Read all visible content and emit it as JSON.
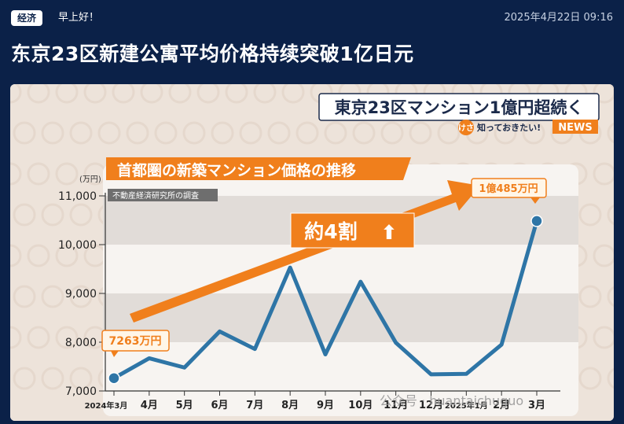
{
  "header": {
    "category": "经济",
    "greeting": "早上好！",
    "timestamp": "2025年4月22日 09:16"
  },
  "article": {
    "headline": "东京23区新建公寓平均价格持续突破1亿日元"
  },
  "broadcast": {
    "title_banner": "東京23区マンション1億円超続く",
    "corner_badge": "けさ",
    "corner_text": "知っておきたい!",
    "corner_news": "NEWS",
    "watermark": "公众号 · huantaichuguo"
  },
  "chart_data": {
    "type": "line",
    "title": "首都圏の新築マンション価格の推移",
    "subtitle": "不動産経済研究所の調査",
    "ylabel": "(万円)",
    "ylim": [
      7000,
      11000
    ],
    "yticks": [
      {
        "value": 7000,
        "label": "7,000"
      },
      {
        "value": 8000,
        "label": "8,000"
      },
      {
        "value": 9000,
        "label": "9,000"
      },
      {
        "value": 10000,
        "label": "10,000"
      },
      {
        "value": 11000,
        "label": "11,000"
      }
    ],
    "categories": [
      "2024年3月",
      "4月",
      "5月",
      "6月",
      "7月",
      "8月",
      "9月",
      "10月",
      "11月",
      "12月",
      "2025年1月",
      "2月",
      "3月"
    ],
    "values": [
      7263,
      7670,
      7480,
      8220,
      7860,
      9530,
      7750,
      9240,
      7990,
      7340,
      7350,
      7950,
      10485
    ],
    "annotations": {
      "start_label": "7263万円",
      "end_label": "1億485万円",
      "change_label": "約4割",
      "change_arrow": "⬆"
    },
    "colors": {
      "line": "#2e75a6",
      "trend_arrow": "#f07f1c",
      "label_box": "#fff6e8",
      "label_text": "#f07f1c"
    }
  }
}
